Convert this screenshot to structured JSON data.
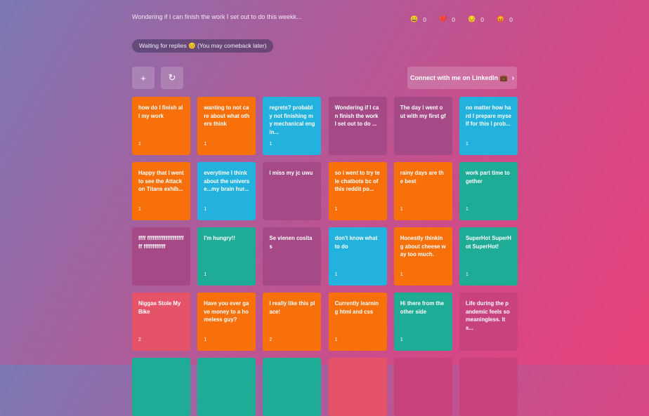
{
  "header": {
    "question": "Wondering if I can finish the work I set out to do this weekk...",
    "reactions": [
      {
        "icon": "grin-emoji-icon",
        "glyph": "😄",
        "count": "0"
      },
      {
        "icon": "heart-icon",
        "glyph": "❤️",
        "count": "0"
      },
      {
        "icon": "sad-emoji-icon",
        "glyph": "😔",
        "count": "0"
      },
      {
        "icon": "angry-emoji-icon",
        "glyph": "😡",
        "count": "0"
      }
    ]
  },
  "status": {
    "waiting": "Waiting for replies 😊  (You may comeback later)"
  },
  "toolbar": {
    "add_icon": "+",
    "refresh_icon": "↻",
    "connect_label": "Connect with me on LinkedIn 💼",
    "connect_chevron": "›"
  },
  "cards": [
    {
      "text": "how do I finish all my work",
      "count": "1",
      "color": "orange"
    },
    {
      "text": "wanting to not care about what others think",
      "count": "1",
      "color": "orange"
    },
    {
      "text": "regrets? probably not finishing my mechanical engin...",
      "count": "1",
      "color": "blue"
    },
    {
      "text": "Wondering if I can finish the work I set out to do ...",
      "count": "",
      "color": "purple"
    },
    {
      "text": "The day I went out with my first gf",
      "count": "",
      "color": "purple"
    },
    {
      "text": "no matter how hard I prepare myself for this I prob...",
      "count": "1",
      "color": "blue"
    },
    {
      "text": "Happy that I went to see the Attack on Titans exhib...",
      "count": "1",
      "color": "orange"
    },
    {
      "text": "everytime I think about the universe...my brain hur...",
      "count": "1",
      "color": "blue"
    },
    {
      "text": "I miss my jc uwu",
      "count": "",
      "color": "purple"
    },
    {
      "text": "so i went to try tele chatbots bc of this reddit po...",
      "count": "1",
      "color": "orange"
    },
    {
      "text": "rainy days are the best",
      "count": "1",
      "color": "orange"
    },
    {
      "text": "work part time together",
      "count": "1",
      "color": "teal"
    },
    {
      "text": "ffff ffffffffffffffffffffff ffffffffffff",
      "count": "",
      "color": "purple"
    },
    {
      "text": "I'm hungry!!",
      "count": "1",
      "color": "teal"
    },
    {
      "text": "Se vienen cositas",
      "count": "",
      "color": "purple"
    },
    {
      "text": "don't know what to do",
      "count": "1",
      "color": "blue"
    },
    {
      "text": "Honestly thinking about cheese way too much.",
      "count": "1",
      "color": "orange"
    },
    {
      "text": "SuperHot SuperHot SuperHot!",
      "count": "1",
      "color": "teal"
    },
    {
      "text": "Niggas Stole My Bike",
      "count": "2",
      "color": "coral"
    },
    {
      "text": "Have you ever gave money to a homeless guy?",
      "count": "1",
      "color": "orange"
    },
    {
      "text": "I really like this place!",
      "count": "2",
      "color": "orange"
    },
    {
      "text": "Currently learning html and css",
      "count": "1",
      "color": "orange"
    },
    {
      "text": "Hi there from the other side",
      "count": "1",
      "color": "teal"
    },
    {
      "text": "Life during the pandemic feels so meaningless. It s...",
      "count": "",
      "color": "magenta"
    },
    {
      "text": "",
      "count": "",
      "color": "teal"
    },
    {
      "text": "",
      "count": "",
      "color": "teal"
    },
    {
      "text": "",
      "count": "",
      "color": "teal"
    },
    {
      "text": "",
      "count": "",
      "color": "coral"
    },
    {
      "text": "",
      "count": "",
      "color": "magenta"
    },
    {
      "text": "",
      "count": "",
      "color": "magenta"
    }
  ]
}
